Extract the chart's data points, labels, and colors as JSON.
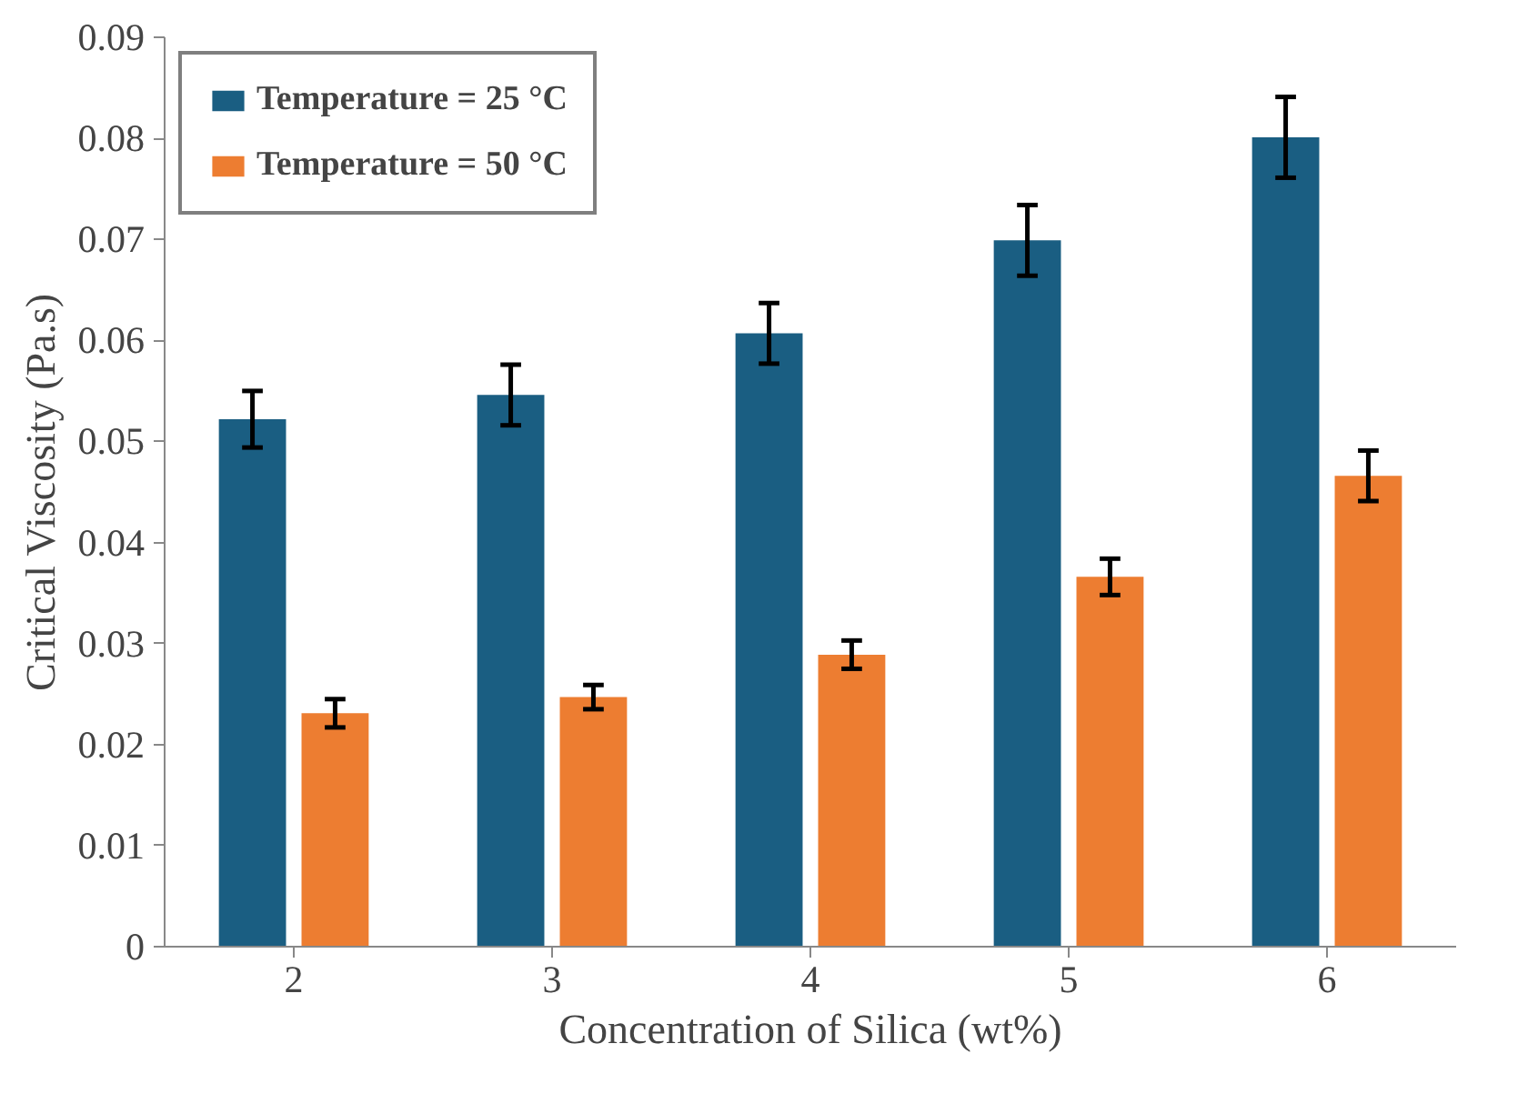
{
  "chart_data": {
    "type": "bar",
    "xlabel": "Concentration of Silica (wt%)",
    "ylabel": "Critical Viscosity (Pa.s)",
    "categories": [
      "2",
      "3",
      "4",
      "5",
      "6"
    ],
    "series": [
      {
        "name": "Temperature = 25 °C",
        "color": "#1a5e82",
        "values": [
          0.0522,
          0.0546,
          0.0607,
          0.0699,
          0.0801
        ],
        "errors": [
          0.0028,
          0.003,
          0.003,
          0.0035,
          0.004
        ]
      },
      {
        "name": "Temperature = 50 °C",
        "color": "#ed7d31",
        "values": [
          0.0231,
          0.0247,
          0.0289,
          0.0366,
          0.0466
        ],
        "errors": [
          0.0014,
          0.0012,
          0.0014,
          0.0018,
          0.0025
        ]
      }
    ],
    "ylim": [
      0,
      0.09
    ],
    "yticks": [
      0,
      0.01,
      0.02,
      0.03,
      0.04,
      0.05,
      0.06,
      0.07,
      0.08,
      0.09
    ],
    "grid": false,
    "legend": "top left"
  }
}
